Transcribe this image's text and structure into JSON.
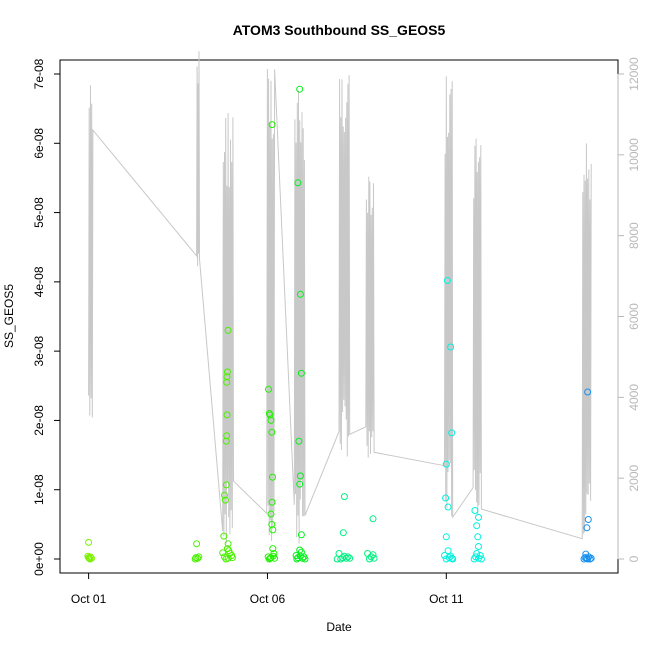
{
  "chart_data": {
    "type": "scatter",
    "title": "ATOM3 Southbound SS_GEOS5",
    "xlabel": "Date",
    "ylabel": "SS_GEOS5",
    "x_ticks": [
      {
        "day": 1,
        "label": "Oct 01"
      },
      {
        "day": 6,
        "label": "Oct 06"
      },
      {
        "day": 11,
        "label": "Oct 11"
      }
    ],
    "xlim_days": [
      0.2,
      15.8
    ],
    "ylim": [
      0,
      7e-08
    ],
    "y_ticks": [
      {
        "value": 0,
        "label": "0e+00"
      },
      {
        "value": 1e-08,
        "label": "1e-08"
      },
      {
        "value": 2e-08,
        "label": "2e-08"
      },
      {
        "value": 3e-08,
        "label": "3e-08"
      },
      {
        "value": 4e-08,
        "label": "4e-08"
      },
      {
        "value": 5e-08,
        "label": "5e-08"
      },
      {
        "value": 6e-08,
        "label": "6e-08"
      },
      {
        "value": 7e-08,
        "label": "7e-08"
      }
    ],
    "y2lim": [
      0,
      12000
    ],
    "y2_ticks": [
      {
        "value": 0,
        "label": "0"
      },
      {
        "value": 2000,
        "label": "2000"
      },
      {
        "value": 4000,
        "label": "4000"
      },
      {
        "value": 6000,
        "label": "6000"
      },
      {
        "value": 8000,
        "label": "8000"
      },
      {
        "value": 10000,
        "label": "10000"
      },
      {
        "value": 12000,
        "label": "12000"
      }
    ],
    "altitude_color": "#c8c8c8",
    "altitude_profiles": [
      {
        "start": 1.0,
        "end": 1.12,
        "min": 3400,
        "max": 12150
      },
      {
        "start": 4.02,
        "end": 4.1,
        "min": 7000,
        "max": 12650
      },
      {
        "start": 4.75,
        "end": 5.05,
        "min": 300,
        "max": 11300
      },
      {
        "start": 5.98,
        "end": 6.2,
        "min": 300,
        "max": 12700
      },
      {
        "start": 6.75,
        "end": 7.05,
        "min": 300,
        "max": 11800
      },
      {
        "start": 8.0,
        "end": 8.3,
        "min": 2500,
        "max": 12400
      },
      {
        "start": 8.75,
        "end": 8.98,
        "min": 2500,
        "max": 10000
      },
      {
        "start": 10.95,
        "end": 11.18,
        "min": 1000,
        "max": 12000
      },
      {
        "start": 11.75,
        "end": 11.98,
        "min": 1000,
        "max": 10500
      },
      {
        "start": 14.8,
        "end": 15.05,
        "min": 500,
        "max": 10300
      }
    ],
    "series": [
      {
        "color": "#7cf000",
        "points": [
          [
            1.0,
            2.4e-09
          ],
          [
            1.0,
            2e-10
          ],
          [
            1.02,
            1e-10
          ],
          [
            1.05,
            3e-10
          ],
          [
            1.08,
            1e-10
          ],
          [
            0.98,
            4e-10
          ],
          [
            1.04,
            0
          ]
        ]
      },
      {
        "color": "#4af000",
        "points": [
          [
            4.02,
            2.2e-09
          ],
          [
            4.0,
            2e-10
          ],
          [
            4.05,
            1e-10
          ],
          [
            3.98,
            0
          ],
          [
            4.08,
            3e-10
          ],
          [
            4.75,
            9e-10
          ],
          [
            4.78,
            3.3e-09
          ],
          [
            4.8,
            9.2e-09
          ],
          [
            4.82,
            8.5e-09
          ],
          [
            4.85,
            1.07e-08
          ],
          [
            4.85,
            1.7e-08
          ],
          [
            4.86,
            1.78e-08
          ],
          [
            4.87,
            2.08e-08
          ],
          [
            4.86,
            2.55e-08
          ],
          [
            4.87,
            2.63e-08
          ],
          [
            4.88,
            2.7e-08
          ],
          [
            4.9,
            3.3e-08
          ],
          [
            4.88,
            1.5e-09
          ],
          [
            4.9,
            2.2e-09
          ],
          [
            4.92,
            1.2e-09
          ],
          [
            4.95,
            8e-10
          ],
          [
            5.0,
            5e-10
          ],
          [
            4.8,
            3e-10
          ],
          [
            4.84,
            0
          ],
          [
            4.9,
            1e-10
          ],
          [
            5.02,
            2e-10
          ]
        ]
      },
      {
        "color": "#22f000",
        "points": [
          [
            6.03,
            2.45e-08
          ],
          [
            6.05,
            2.1e-08
          ],
          [
            6.07,
            2.08e-08
          ],
          [
            6.1,
            2e-08
          ],
          [
            6.12,
            1.83e-08
          ],
          [
            6.14,
            1.18e-08
          ],
          [
            6.13,
            8.2e-09
          ],
          [
            6.1,
            6.5e-09
          ],
          [
            6.12,
            5e-09
          ],
          [
            6.15,
            4.2e-09
          ],
          [
            6.13,
            6.27e-08
          ],
          [
            6.15,
            1.5e-09
          ],
          [
            6.18,
            8e-10
          ],
          [
            6.02,
            3e-10
          ],
          [
            6.05,
            0
          ],
          [
            6.08,
            1e-10
          ],
          [
            6.1,
            2e-10
          ],
          [
            6.16,
            4e-10
          ],
          [
            6.2,
            1e-10
          ]
        ]
      },
      {
        "color": "#00f018",
        "points": [
          [
            6.85,
            5.43e-08
          ],
          [
            6.9,
            6.78e-08
          ],
          [
            6.92,
            3.82e-08
          ],
          [
            6.95,
            2.68e-08
          ],
          [
            6.88,
            1.7e-08
          ],
          [
            6.92,
            1.2e-08
          ],
          [
            6.9,
            1.08e-08
          ],
          [
            6.95,
            3.5e-09
          ],
          [
            6.9,
            1.3e-09
          ],
          [
            6.95,
            1e-09
          ],
          [
            6.8,
            5e-10
          ],
          [
            6.82,
            0
          ],
          [
            6.85,
            2e-10
          ],
          [
            6.92,
            4e-10
          ],
          [
            6.98,
            1e-10
          ],
          [
            7.02,
            3e-10
          ],
          [
            7.05,
            0
          ]
        ]
      },
      {
        "color": "#00f080",
        "points": [
          [
            8.15,
            9e-09
          ],
          [
            8.12,
            3.8e-09
          ],
          [
            8.0,
            8e-10
          ],
          [
            8.05,
            0
          ],
          [
            8.1,
            2e-10
          ],
          [
            8.15,
            4e-10
          ],
          [
            8.2,
            1e-10
          ],
          [
            8.25,
            3e-10
          ],
          [
            7.95,
            0
          ],
          [
            8.3,
            1e-10
          ],
          [
            8.95,
            5.8e-09
          ],
          [
            8.8,
            8e-10
          ],
          [
            8.85,
            0
          ],
          [
            8.9,
            3e-10
          ],
          [
            8.95,
            6e-10
          ],
          [
            8.98,
            1e-10
          ]
        ]
      },
      {
        "color": "#00f0e0",
        "points": [
          [
            11.03,
            4.02e-08
          ],
          [
            11.12,
            3.06e-08
          ],
          [
            11.15,
            1.82e-08
          ],
          [
            11.0,
            1.37e-08
          ],
          [
            10.98,
            8.8e-09
          ],
          [
            11.05,
            7.5e-09
          ],
          [
            11.0,
            3.2e-09
          ],
          [
            11.05,
            1.2e-09
          ],
          [
            10.95,
            5e-10
          ],
          [
            11.0,
            0
          ],
          [
            11.08,
            2e-10
          ],
          [
            11.12,
            4e-10
          ],
          [
            11.16,
            1e-10
          ],
          [
            11.18,
            0
          ],
          [
            11.8,
            7e-09
          ],
          [
            11.9,
            6e-09
          ],
          [
            11.85,
            4.8e-09
          ],
          [
            11.88,
            3.2e-09
          ],
          [
            11.9,
            1.8e-09
          ],
          [
            11.85,
            8e-10
          ],
          [
            11.78,
            0
          ],
          [
            11.82,
            3e-10
          ],
          [
            11.9,
            1e-10
          ],
          [
            11.95,
            5e-10
          ],
          [
            11.98,
            0
          ]
        ]
      },
      {
        "color": "#1890f0",
        "points": [
          [
            14.95,
            2.41e-08
          ],
          [
            14.97,
            5.7e-09
          ],
          [
            14.93,
            4.5e-09
          ],
          [
            14.9,
            7e-10
          ],
          [
            14.85,
            0
          ],
          [
            14.88,
            2e-10
          ],
          [
            14.92,
            1e-10
          ],
          [
            14.98,
            3e-10
          ],
          [
            15.02,
            0
          ],
          [
            15.05,
            1e-10
          ],
          [
            14.95,
            0
          ]
        ]
      }
    ]
  }
}
